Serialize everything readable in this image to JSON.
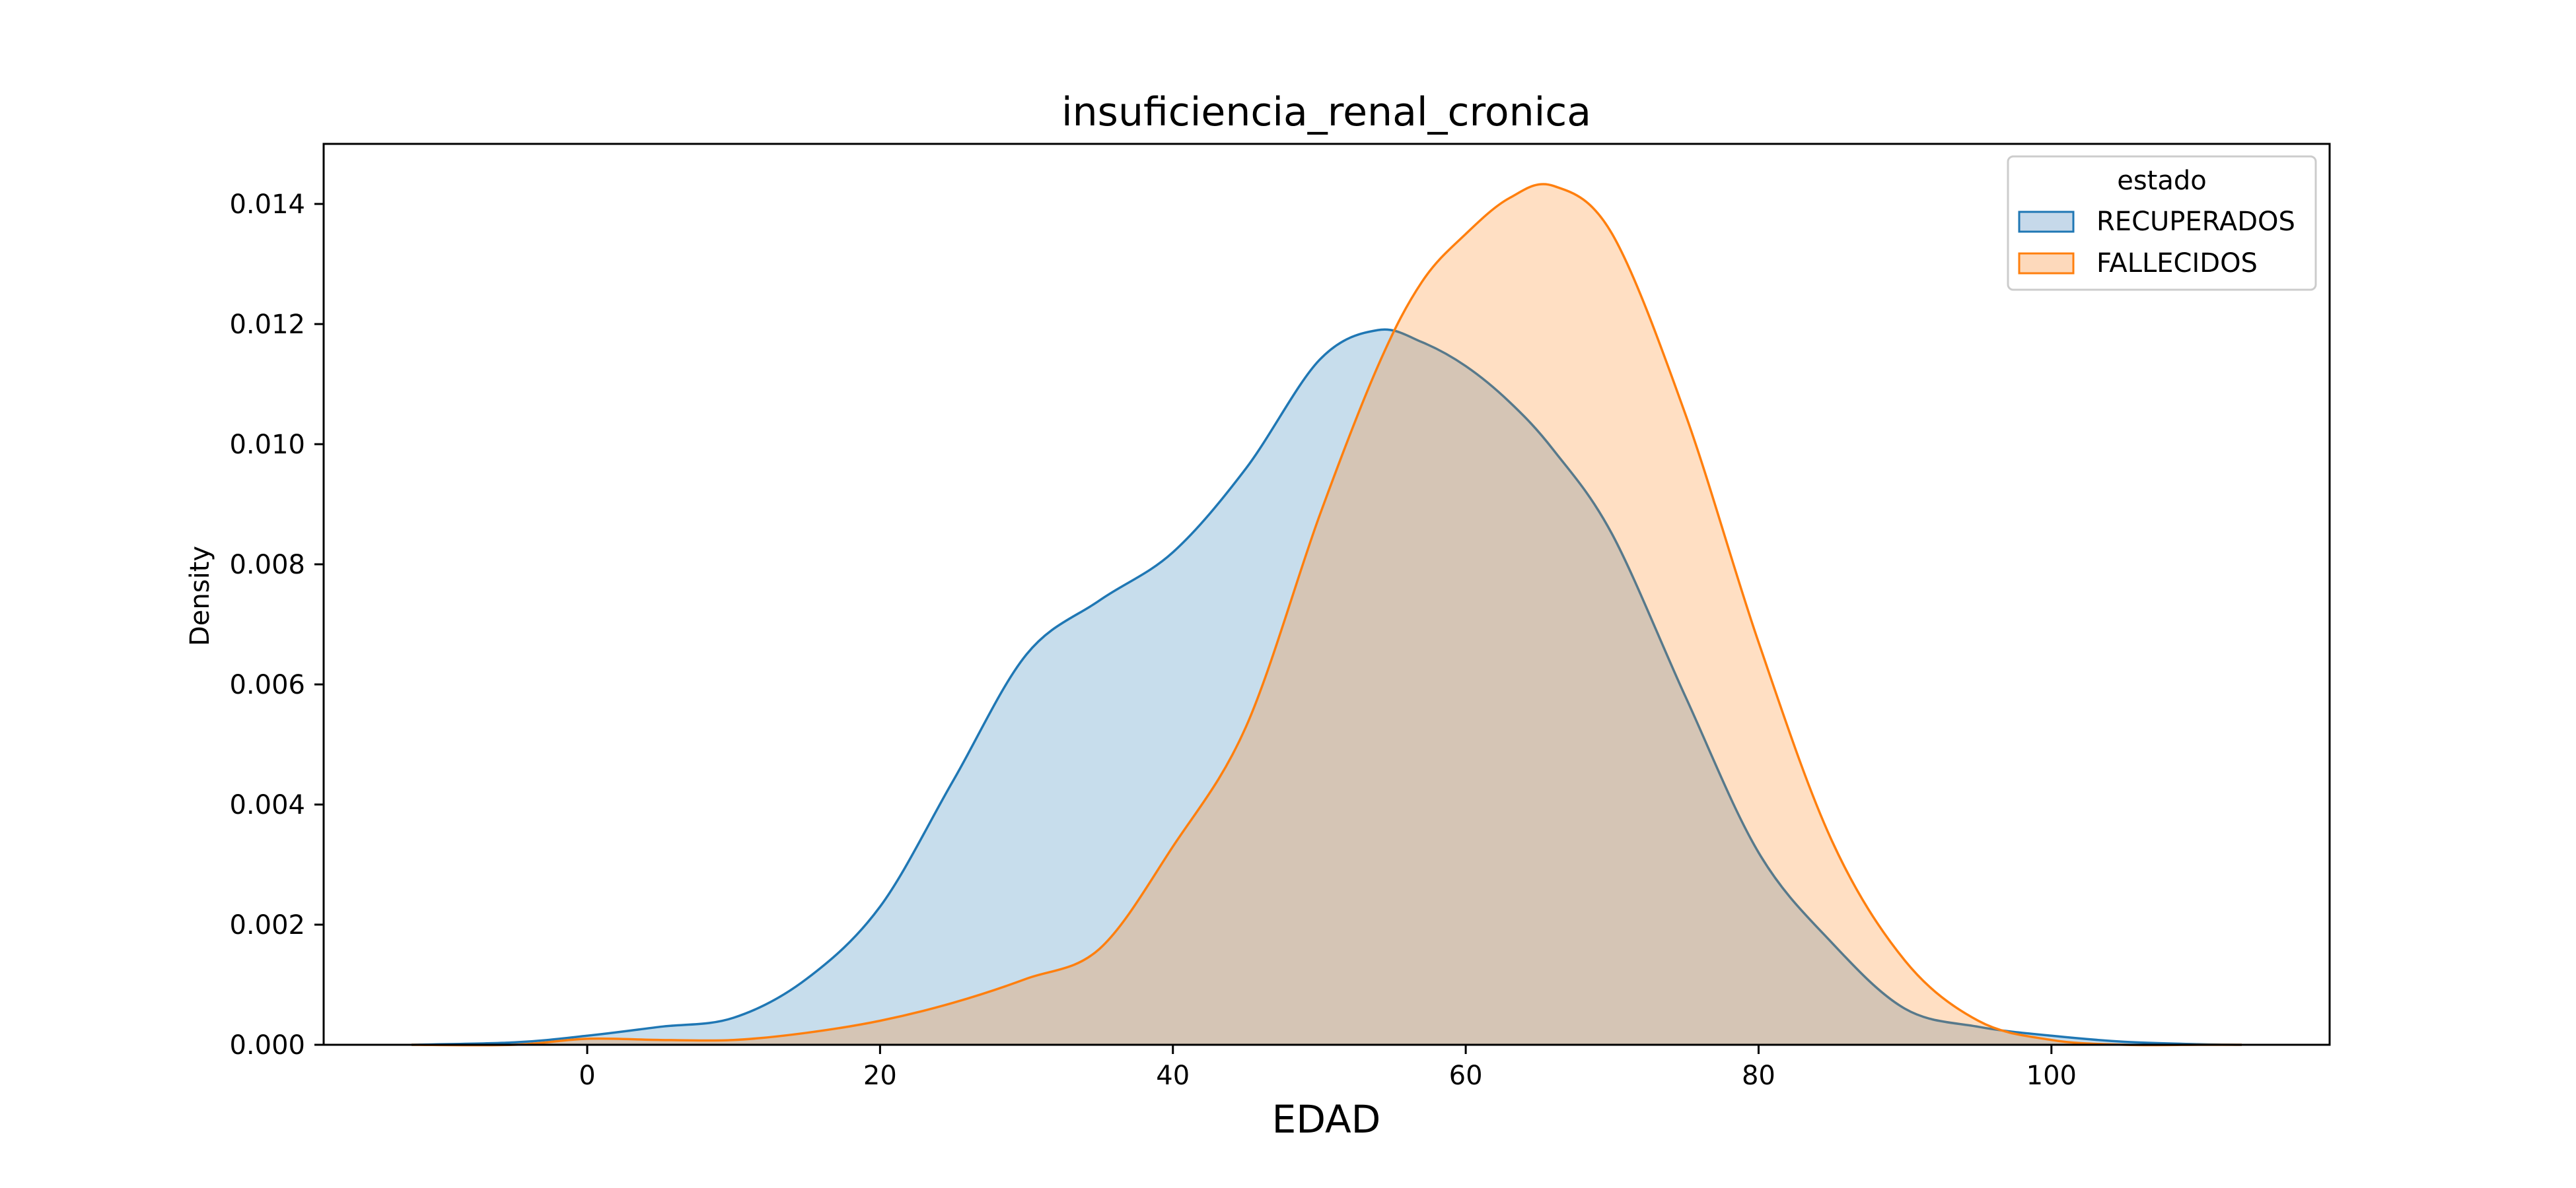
{
  "chart_data": {
    "type": "area",
    "title": "insuficiencia_renal_cronica",
    "xlabel": "EDAD",
    "ylabel": "Density",
    "xlim": [
      -18,
      119
    ],
    "ylim": [
      0,
      0.015
    ],
    "xticks": [
      0,
      20,
      40,
      60,
      80,
      100
    ],
    "yticks": [
      0.0,
      0.002,
      0.004,
      0.006,
      0.008,
      0.01,
      0.012,
      0.014
    ],
    "xtick_labels": [
      "0",
      "20",
      "40",
      "60",
      "80",
      "100"
    ],
    "ytick_labels": [
      "0.000",
      "0.002",
      "0.004",
      "0.006",
      "0.008",
      "0.010",
      "0.012",
      "0.014"
    ],
    "grid": false,
    "legend": {
      "title": "estado",
      "placement": "top-right"
    },
    "x": [
      -12,
      -5,
      0,
      5,
      10,
      15,
      20,
      25,
      30,
      35,
      40,
      45,
      50,
      54,
      57,
      60,
      63,
      66,
      70,
      75,
      80,
      85,
      90,
      95,
      100,
      105,
      110,
      113
    ],
    "series": [
      {
        "name": "RECUPERADOS",
        "color": "#1f77b4",
        "fill": "#c6d9ea",
        "values": [
          0.0,
          4e-05,
          0.00015,
          0.0003,
          0.00045,
          0.0011,
          0.0023,
          0.0044,
          0.0065,
          0.0074,
          0.0082,
          0.0096,
          0.0114,
          0.0119,
          0.0117,
          0.0113,
          0.0107,
          0.0099,
          0.0085,
          0.0058,
          0.0032,
          0.0017,
          0.0006,
          0.0003,
          0.00015,
          5e-05,
          1e-05,
          0.0
        ]
      },
      {
        "name": "FALLECIDOS",
        "color": "#ff7f0e",
        "fill": "#fdd9bb",
        "values": [
          0.0,
          0.0,
          0.0001,
          8e-05,
          8e-05,
          0.0002,
          0.0004,
          0.0007,
          0.0011,
          0.0016,
          0.0033,
          0.0053,
          0.0088,
          0.0113,
          0.0127,
          0.0135,
          0.0141,
          0.0143,
          0.0135,
          0.0105,
          0.0067,
          0.0034,
          0.0014,
          0.0004,
          8e-05,
          0.0,
          0.0,
          0.0
        ]
      }
    ]
  }
}
